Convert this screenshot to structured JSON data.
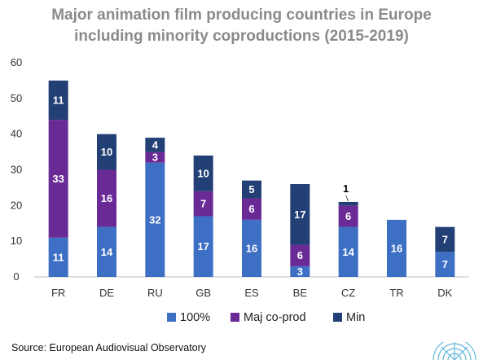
{
  "title_lines": [
    "Major animation film producing countries in Europe",
    "including minority coproductions (2015-2019)"
  ],
  "source": "Source: European Audiovisual Observatory",
  "chart_data": {
    "type": "bar",
    "stacked": true,
    "categories": [
      "FR",
      "DE",
      "RU",
      "GB",
      "ES",
      "BE",
      "CZ",
      "TR",
      "DK"
    ],
    "series": [
      {
        "name": "100%",
        "color": "#3d6fc4",
        "values": [
          11,
          14,
          32,
          17,
          16,
          3,
          14,
          16,
          7
        ],
        "labels": [
          "11",
          "14",
          "32",
          "17",
          "16",
          "3",
          "14",
          "16",
          "7"
        ]
      },
      {
        "name": "Maj co-prod",
        "color": "#6a2a96",
        "values": [
          33,
          16,
          3,
          7,
          6,
          6,
          6,
          0,
          0
        ],
        "labels": [
          "33",
          "16",
          "3",
          "7",
          "6",
          "6",
          "6",
          "",
          ""
        ]
      },
      {
        "name": "Min",
        "color": "#223f76",
        "values": [
          11,
          10,
          4,
          10,
          5,
          17,
          1,
          0,
          7
        ],
        "labels": [
          "11",
          "10",
          "4",
          "10",
          "5",
          "17",
          "1",
          "",
          "7"
        ]
      }
    ],
    "ylim": [
      0,
      60
    ],
    "yticks": [
      0,
      10,
      20,
      30,
      40,
      50,
      60
    ],
    "grid": false,
    "legend_position": "bottom"
  }
}
